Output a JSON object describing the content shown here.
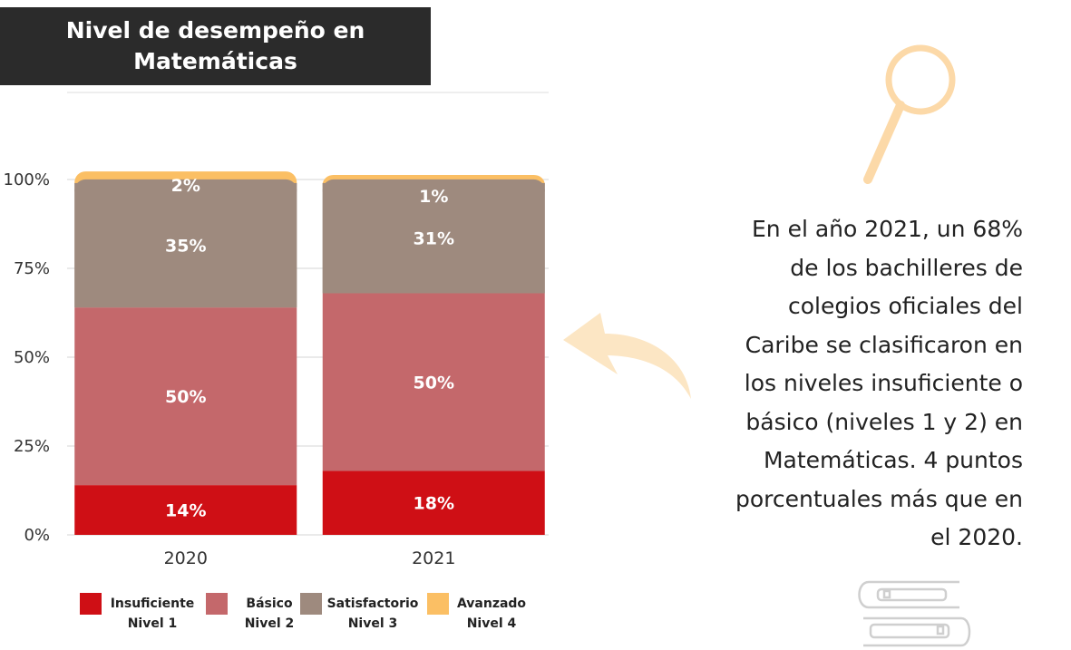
{
  "header": {
    "title_line1": "Nivel de desempeño en",
    "title_line2": "Matemáticas"
  },
  "chart_data": {
    "type": "bar",
    "stacked": true,
    "categories": [
      "2020",
      "2021"
    ],
    "series": [
      {
        "name": "Insuficiente Nivel 1",
        "color": "#cf0f15",
        "values": [
          14,
          18
        ],
        "labels": [
          "14%",
          "18%"
        ]
      },
      {
        "name": "Básico Nivel 2",
        "color": "#c4686b",
        "values": [
          50,
          50
        ],
        "labels": [
          "50%",
          "50%"
        ]
      },
      {
        "name": "Satisfactorio Nivel 3",
        "color": "#9e8a7e",
        "values": [
          35,
          31
        ],
        "labels": [
          "35%",
          "31%"
        ]
      },
      {
        "name": "Avanzado Nivel 4",
        "color": "#fbbf64",
        "values": [
          2,
          1
        ],
        "labels": [
          "2%",
          "1%"
        ]
      }
    ],
    "ylim": [
      0,
      100
    ],
    "yticks": [
      "0%",
      "25%",
      "50%",
      "75%",
      "100%"
    ],
    "grid": true,
    "legend_position": "bottom"
  },
  "legend": [
    {
      "line1": "Insuficiente",
      "line2": "Nivel 1",
      "color": "#cf0f15"
    },
    {
      "line1": "Básico",
      "line2": "Nivel 2",
      "color": "#c4686b"
    },
    {
      "line1": "Satisfactorio",
      "line2": "Nivel 3",
      "color": "#9e8a7e"
    },
    {
      "line1": "Avanzado",
      "line2": "Nivel 4",
      "color": "#fbbf64"
    }
  ],
  "info": {
    "lines": [
      "En el año 2021, un 68%",
      "de los bachilleres de",
      "colegios oficiales del",
      "Caribe se clasificaron en",
      "los niveles insuficiente o",
      "básico (niveles 1 y 2) en",
      "Matemáticas. 4 puntos",
      "porcentuales más que en",
      "el 2020."
    ]
  },
  "icons": [
    "magnifier-icon",
    "arrow-icon",
    "books-icon"
  ],
  "colors": {
    "accent": "#fbbf64",
    "title_bg": "#2b2b2b"
  }
}
